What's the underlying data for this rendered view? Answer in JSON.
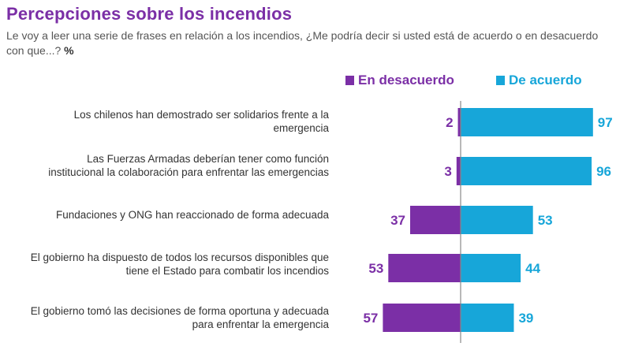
{
  "title": "Percepciones sobre los incendios",
  "subtitle": "Le voy a leer una serie de frases en relación a los incendios, ¿Me podría decir si usted está de acuerdo o en desacuerdo con que...?",
  "subtitle_unit": "%",
  "colors": {
    "disagree": "#7b2fa6",
    "agree": "#17a6d9",
    "axis": "#888888"
  },
  "chart_data": {
    "type": "bar",
    "orientation": "horizontal-diverging",
    "categories": [
      "Los chilenos han demostrado ser solidarios frente a la emergencia",
      "Las Fuerzas Armadas deberían tener como función institucional la colaboración para enfrentar las emergencias",
      "Fundaciones y ONG han reaccionado de forma adecuada",
      "El gobierno ha dispuesto de todos los recursos disponibles que tiene el Estado para combatir los incendios",
      "El gobierno tomó las decisiones de forma oportuna y adecuada para enfrentar la emergencia"
    ],
    "series": [
      {
        "name": "En desacuerdo",
        "values": [
          2,
          3,
          37,
          53,
          57
        ]
      },
      {
        "name": "De acuerdo",
        "values": [
          97,
          96,
          53,
          44,
          39
        ]
      }
    ],
    "legend": "top-right",
    "grid": false
  }
}
